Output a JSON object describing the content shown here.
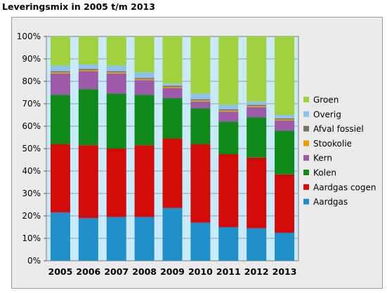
{
  "title": "Leveringsmix in 2005 t/m 2013",
  "chart_data": {
    "type": "bar",
    "stacked": true,
    "title": "Leveringsmix in 2005 t/m 2013",
    "xlabel": "",
    "ylabel": "",
    "ylim": [
      0,
      100
    ],
    "yticks": [
      "0%",
      "10%",
      "20%",
      "30%",
      "40%",
      "50%",
      "60%",
      "70%",
      "80%",
      "90%",
      "100%"
    ],
    "categories": [
      "2005",
      "2006",
      "2007",
      "2008",
      "2009",
      "2010",
      "2011",
      "2012",
      "2013"
    ],
    "legend_position": "right",
    "grid": true,
    "series": [
      {
        "name": "Aardgas",
        "color": "#1f8fc8",
        "values": [
          21.5,
          19,
          19.5,
          19.5,
          23.5,
          17,
          15,
          14.5,
          12.5
        ]
      },
      {
        "name": "Aardgas cogen",
        "color": "#d10a0a",
        "values": [
          30.5,
          32.5,
          30.5,
          32,
          31,
          35,
          32.5,
          31.5,
          26
        ]
      },
      {
        "name": "Kolen",
        "color": "#0f8a1a",
        "values": [
          22,
          25,
          24.5,
          22.5,
          18,
          16,
          14.5,
          18,
          19.5
        ]
      },
      {
        "name": "Kern",
        "color": "#9c5aa8",
        "values": [
          9.5,
          8,
          9,
          6.5,
          4.5,
          3,
          4.5,
          4.5,
          4.5
        ]
      },
      {
        "name": "Stookolie",
        "color": "#e8a000",
        "values": [
          0.5,
          0.5,
          0.5,
          0.5,
          0.5,
          0.5,
          0.5,
          0.5,
          0.5
        ]
      },
      {
        "name": "Afval fossiel",
        "color": "#7a7066",
        "values": [
          0.5,
          0.5,
          0.5,
          0.5,
          0.5,
          0.5,
          0.5,
          0.5,
          0.5
        ]
      },
      {
        "name": "Overig",
        "color": "#8fc1ec",
        "values": [
          2.5,
          2,
          2.5,
          2.5,
          1,
          2.5,
          2,
          1.5,
          1.5
        ]
      },
      {
        "name": "Groen",
        "color": "#9ed13b",
        "values": [
          13,
          12.5,
          13,
          16,
          21,
          25.5,
          30.5,
          29,
          35
        ]
      }
    ]
  }
}
